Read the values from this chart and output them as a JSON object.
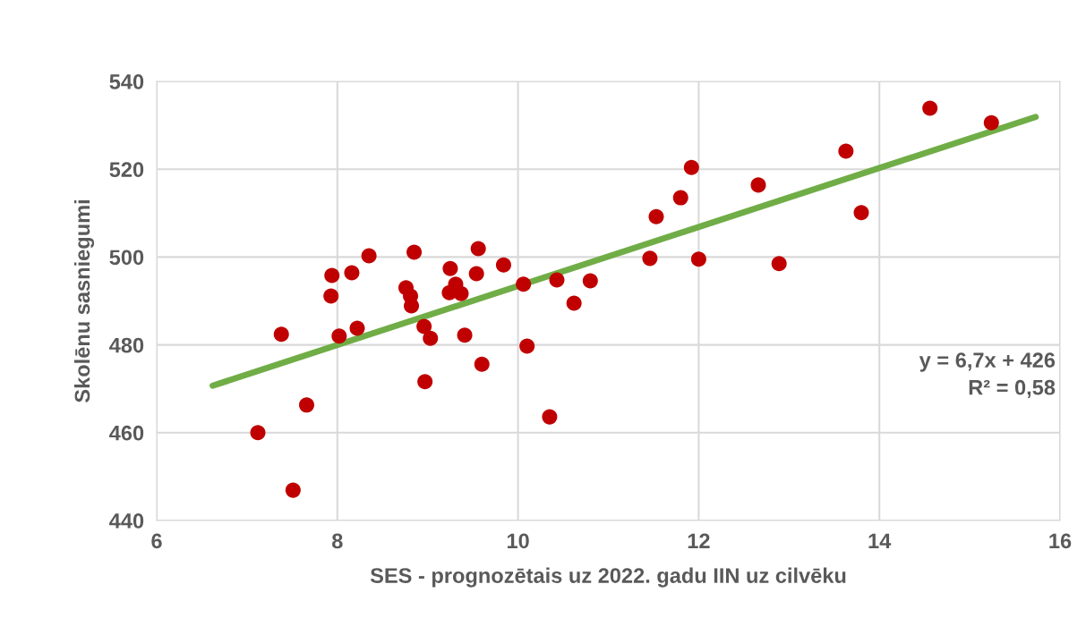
{
  "chart_data": {
    "type": "scatter",
    "xlabel": "SES - prognozētais uz 2022. gadu IIN uz cilvēku",
    "ylabel": "Skolēnu sasniegumi",
    "xlim": [
      6,
      16
    ],
    "xticks": [
      6,
      8,
      10,
      12,
      14,
      16
    ],
    "ylim": [
      440,
      540
    ],
    "yticks": [
      440,
      460,
      480,
      500,
      520,
      540
    ],
    "grid": true,
    "marker": "circle",
    "series": [
      {
        "color": "#c00000",
        "x": [
          7.12,
          7.38,
          7.51,
          7.66,
          7.93,
          7.94,
          8.02,
          8.16,
          8.22,
          8.35,
          8.76,
          8.81,
          8.82,
          8.85,
          8.96,
          8.97,
          9.03,
          9.24,
          9.25,
          9.31,
          9.37,
          9.41,
          9.54,
          9.56,
          9.6,
          9.84,
          10.06,
          10.1,
          10.35,
          10.43,
          10.62,
          10.8,
          11.46,
          11.53,
          11.8,
          11.92,
          12.0,
          12.66,
          12.89,
          13.63,
          13.8,
          14.56,
          15.24
        ],
        "values": [
          460.0,
          482.4,
          446.9,
          466.3,
          491.1,
          495.8,
          482.0,
          496.4,
          483.8,
          500.3,
          493.0,
          491.1,
          488.9,
          501.1,
          484.2,
          471.6,
          481.5,
          491.9,
          497.4,
          493.8,
          491.7,
          482.2,
          496.2,
          501.9,
          475.6,
          498.2,
          493.8,
          479.7,
          463.6,
          494.8,
          489.5,
          494.6,
          499.7,
          509.2,
          513.5,
          520.4,
          499.5,
          516.4,
          498.5,
          524.1,
          510.1,
          533.9,
          530.6
        ]
      },
      {
        "type": "line",
        "color": "#70ad47",
        "x": [
          6.62,
          15.73
        ],
        "values": [
          470.7,
          531.9
        ],
        "marker": "none"
      }
    ],
    "annotations": [
      "y = 6,7x + 426",
      "R² = 0,58"
    ]
  }
}
